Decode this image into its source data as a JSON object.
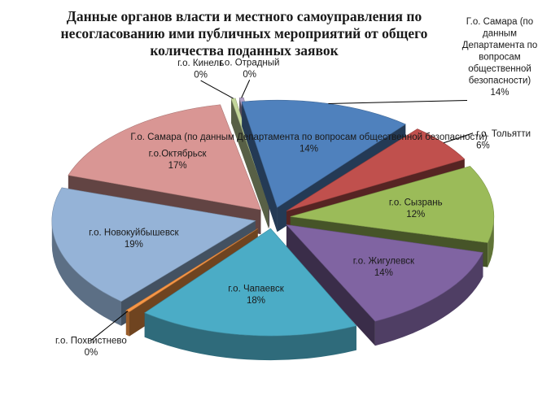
{
  "chart_data": {
    "type": "pie",
    "title": "Данные органов власти и местного самоуправления по несогласованию ими публичных мероприятий от общего количества поданных заявок",
    "slices": [
      {
        "label": "Г.о. Самара (по данным Департамента по вопросам общественной безопасности)",
        "value": 14,
        "display": "14%",
        "color": "#4F81BD"
      },
      {
        "label": "г.о. Тольятти",
        "value": 6,
        "display": "6%",
        "color": "#C0504D"
      },
      {
        "label": "г.о. Сызрань",
        "value": 12,
        "display": "12%",
        "color": "#9BBB59"
      },
      {
        "label": "г.о. Жигулевск",
        "value": 14,
        "display": "14%",
        "color": "#8064A2"
      },
      {
        "label": "г.о. Чапаевск",
        "value": 18,
        "display": "18%",
        "color": "#4BACC6"
      },
      {
        "label": "г.о. Похвистнево",
        "value": 0,
        "display": "0%",
        "color": "#F79646"
      },
      {
        "label": "г.о. Новокуйбышевск",
        "value": 19,
        "display": "19%",
        "color": "#95B3D7"
      },
      {
        "label": "г.о.Октябрьск",
        "value": 17,
        "display": "17%",
        "color": "#D99694"
      },
      {
        "label": "г.о. Кинель",
        "value": 0,
        "display": "0%",
        "color": "#C3D69B"
      },
      {
        "label": "г.о. Отрадный",
        "value": 0,
        "display": "0%",
        "color": "#B3A2C7"
      }
    ],
    "style": "3d-exploded",
    "legend": "none"
  }
}
